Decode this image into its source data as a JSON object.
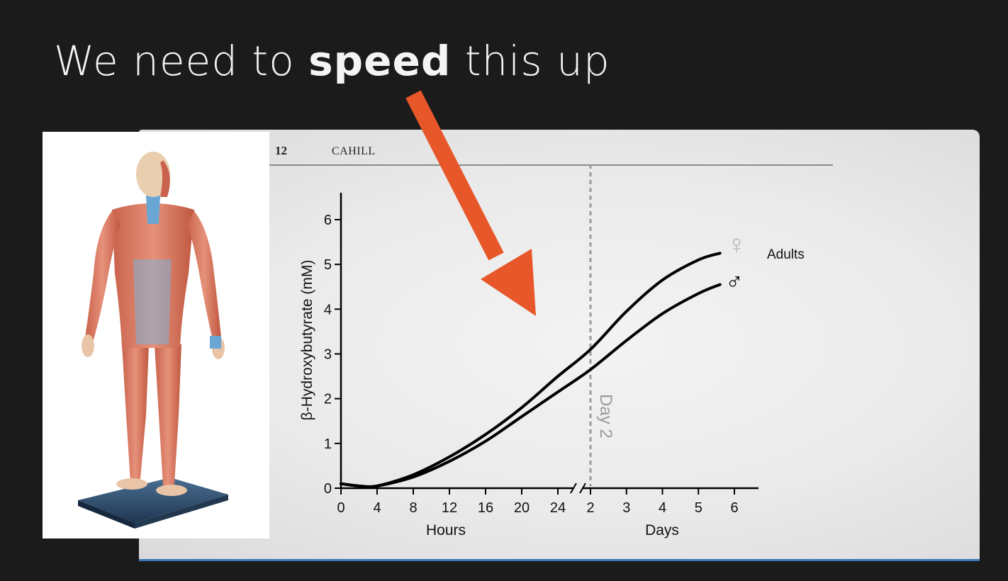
{
  "slide": {
    "title_prefix": "We need to ",
    "title_emphasis": "speed",
    "title_suffix": " this up",
    "background_color": "#1b1b1b",
    "arrow_color": "#e8572a",
    "image_subject": "anatomical-muscle-figure"
  },
  "paper_header": {
    "page_number": "12",
    "author": "CAHILL"
  },
  "chart_data": {
    "type": "line",
    "ylabel": "β-Hydroxybutyrate (mM)",
    "ylim": [
      0,
      6
    ],
    "y_ticks": [
      0,
      1,
      2,
      3,
      4,
      5,
      6
    ],
    "x_segments": [
      {
        "label": "Hours",
        "ticks": [
          "0",
          "4",
          "8",
          "12",
          "16",
          "20",
          "24"
        ],
        "range": [
          0,
          24
        ]
      },
      {
        "label": "Days",
        "ticks": [
          "2",
          "3",
          "4",
          "5",
          "6"
        ],
        "range": [
          2,
          6
        ]
      }
    ],
    "axis_break": "between 24 hours and 2 days",
    "marker_label": "Day 2",
    "legend_label": "Adults",
    "series": [
      {
        "name": "♀",
        "points": [
          {
            "seg": 0,
            "x": 0,
            "y": 0.1
          },
          {
            "seg": 0,
            "x": 2,
            "y": 0.05
          },
          {
            "seg": 0,
            "x": 4,
            "y": 0.05
          },
          {
            "seg": 0,
            "x": 8,
            "y": 0.3
          },
          {
            "seg": 0,
            "x": 12,
            "y": 0.7
          },
          {
            "seg": 0,
            "x": 16,
            "y": 1.2
          },
          {
            "seg": 0,
            "x": 20,
            "y": 1.8
          },
          {
            "seg": 0,
            "x": 24,
            "y": 2.5
          },
          {
            "seg": 1,
            "x": 2,
            "y": 3.1
          },
          {
            "seg": 1,
            "x": 3,
            "y": 3.95
          },
          {
            "seg": 1,
            "x": 4,
            "y": 4.65
          },
          {
            "seg": 1,
            "x": 5,
            "y": 5.1
          },
          {
            "seg": 1,
            "x": 5.6,
            "y": 5.25
          }
        ]
      },
      {
        "name": "♂",
        "points": [
          {
            "seg": 0,
            "x": 0,
            "y": 0.1
          },
          {
            "seg": 0,
            "x": 2,
            "y": 0.05
          },
          {
            "seg": 0,
            "x": 4,
            "y": 0.05
          },
          {
            "seg": 0,
            "x": 8,
            "y": 0.25
          },
          {
            "seg": 0,
            "x": 12,
            "y": 0.6
          },
          {
            "seg": 0,
            "x": 16,
            "y": 1.05
          },
          {
            "seg": 0,
            "x": 20,
            "y": 1.6
          },
          {
            "seg": 0,
            "x": 24,
            "y": 2.15
          },
          {
            "seg": 1,
            "x": 2,
            "y": 2.65
          },
          {
            "seg": 1,
            "x": 3,
            "y": 3.3
          },
          {
            "seg": 1,
            "x": 4,
            "y": 3.9
          },
          {
            "seg": 1,
            "x": 5,
            "y": 4.35
          },
          {
            "seg": 1,
            "x": 5.6,
            "y": 4.55
          }
        ]
      }
    ]
  }
}
